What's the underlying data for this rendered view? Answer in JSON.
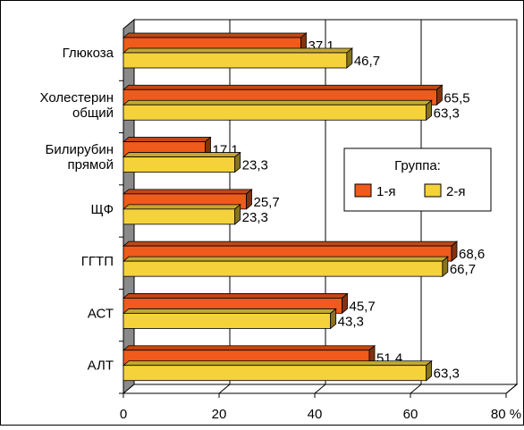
{
  "chart_data": {
    "type": "bar",
    "orientation": "horizontal",
    "style": "3d",
    "categories": [
      "Глюкоза",
      "Холестерин общий",
      "Билирубин прямой",
      "ЩФ",
      "ГГТП",
      "АСТ",
      "АЛТ"
    ],
    "category_lines": [
      [
        "Глюкоза"
      ],
      [
        "Холестерин",
        "общий"
      ],
      [
        "Билирубин",
        "прямой"
      ],
      [
        "ЩФ"
      ],
      [
        "ГГТП"
      ],
      [
        "АСТ"
      ],
      [
        "АЛТ"
      ]
    ],
    "series": [
      {
        "name": "1-я",
        "color": "#f05a1a",
        "values": [
          37.1,
          65.5,
          17.1,
          25.7,
          68.6,
          45.7,
          51.4
        ]
      },
      {
        "name": "2-я",
        "color": "#f5d23a",
        "values": [
          46.7,
          63.3,
          23.3,
          23.3,
          66.7,
          43.3,
          63.3
        ]
      }
    ],
    "value_labels": [
      [
        "37,1",
        "65,5",
        "17,1",
        "25,7",
        "68,6",
        "45,7",
        "51,4"
      ],
      [
        "46,7",
        "63,3",
        "23,3",
        "23,3",
        "66,7",
        "43,3",
        "63,3"
      ]
    ],
    "xlim": [
      0,
      80
    ],
    "xticks": [
      0,
      20,
      40,
      60,
      80
    ],
    "xtick_labels": [
      "0",
      "20",
      "40",
      "60",
      "80 %"
    ],
    "grid": true,
    "legend": {
      "title": "Группа:",
      "placement": "right",
      "entries": [
        "1-я",
        "2-я"
      ]
    },
    "colors": {
      "background": "#ffffff",
      "wall": "#b8b8b8",
      "wall_dark": "#8a8a8a",
      "grid": "#000000"
    }
  }
}
